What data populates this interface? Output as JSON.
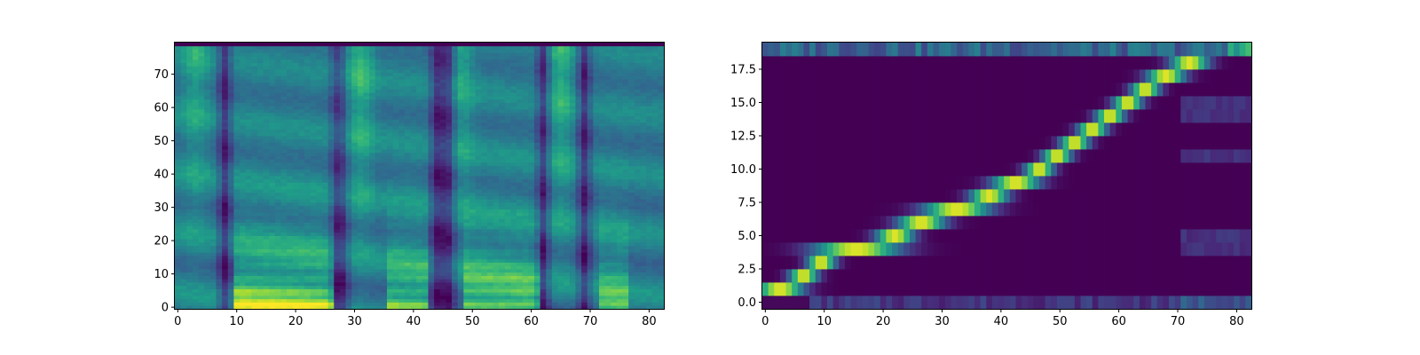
{
  "figure": {
    "background": "#ffffff"
  },
  "chart_data": [
    {
      "type": "heatmap",
      "title": "",
      "xlabel": "",
      "ylabel": "",
      "colormap": "viridis",
      "columns": 83,
      "rows": 80,
      "xlim": [
        -0.5,
        82.5
      ],
      "ylim": [
        -0.5,
        79.5
      ],
      "xticks": [
        0,
        10,
        20,
        30,
        40,
        50,
        60,
        70,
        80
      ],
      "yticks": [
        0,
        10,
        20,
        30,
        40,
        50,
        60,
        70
      ],
      "ytick_labels": [
        "0",
        "10",
        "20",
        "30",
        "40",
        "50",
        "60",
        "70"
      ],
      "grid": false,
      "description_of_values": "mel-spectrogram-like intensity; bright low bands at x 10–26, 36–42, 49–61, 72–76; dark vertical gaps at x 8, 27–28, 44–46, 62, 69"
    },
    {
      "type": "heatmap",
      "title": "",
      "xlabel": "",
      "ylabel": "",
      "colormap": "viridis",
      "columns": 83,
      "rows": 20,
      "xlim": [
        -0.5,
        82.5
      ],
      "ylim": [
        -0.5,
        19.5
      ],
      "xticks": [
        0,
        10,
        20,
        30,
        40,
        50,
        60,
        70,
        80
      ],
      "yticks": [
        0,
        2.5,
        5,
        7.5,
        10,
        12.5,
        15,
        17.5
      ],
      "ytick_labels": [
        "0.0",
        "2.5",
        "5.0",
        "7.5",
        "10.0",
        "12.5",
        "15.0",
        "17.5"
      ],
      "grid": false,
      "alignment_path": [
        {
          "x": 0,
          "y": 1
        },
        {
          "x": 5,
          "y": 2
        },
        {
          "x": 8,
          "y": 3
        },
        {
          "x": 11,
          "y": 4
        },
        {
          "x": 20,
          "y": 5
        },
        {
          "x": 24,
          "y": 6
        },
        {
          "x": 29,
          "y": 7
        },
        {
          "x": 36,
          "y": 8
        },
        {
          "x": 40,
          "y": 9
        },
        {
          "x": 45,
          "y": 10
        },
        {
          "x": 48,
          "y": 11
        },
        {
          "x": 51,
          "y": 12
        },
        {
          "x": 54,
          "y": 13
        },
        {
          "x": 57,
          "y": 14
        },
        {
          "x": 60,
          "y": 15
        },
        {
          "x": 63,
          "y": 16
        },
        {
          "x": 66,
          "y": 17
        },
        {
          "x": 70,
          "y": 18
        }
      ]
    }
  ]
}
